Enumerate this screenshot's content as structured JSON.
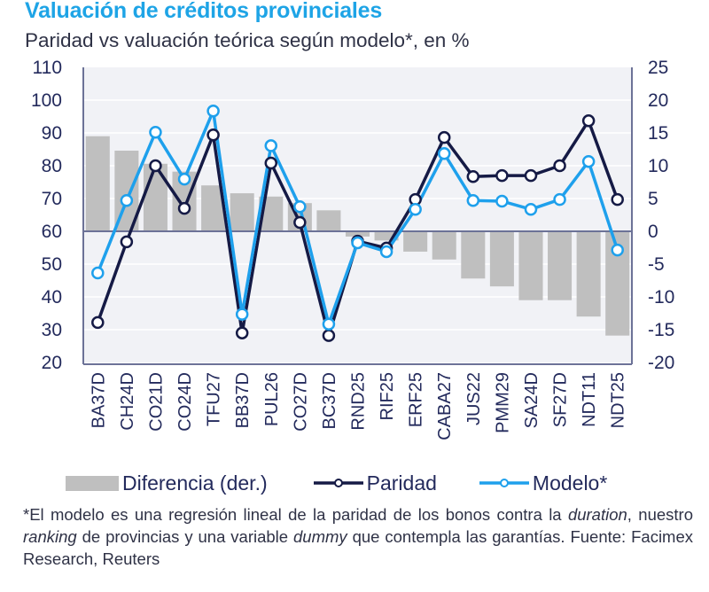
{
  "header": {
    "title": "Valuación de créditos provinciales",
    "subtitle": "Paridad vs valuación teórica según modelo*, en %"
  },
  "colors": {
    "title": "#1ea4e6",
    "paridad": "#151a45",
    "modelo": "#1ea0ec",
    "diferencia": "#bfbfbf",
    "plot_bg": "#f1f2f6",
    "axis": "#6c7297",
    "gridline": "#ffffff"
  },
  "chart_data": {
    "type": "bar+line",
    "title": "Valuación de créditos provinciales",
    "subtitle": "Paridad vs valuación teórica según modelo*, en %",
    "categories": [
      "BA37D",
      "CH24D",
      "CO21D",
      "CO24D",
      "TFU27",
      "BB37D",
      "PUL26",
      "CO27D",
      "BC37D",
      "RND25",
      "RIF25",
      "ERF25",
      "CABA27",
      "JUS22",
      "PMM29",
      "SA24D",
      "SF27D",
      "NDT11",
      "NDT25"
    ],
    "series": [
      {
        "name": "Diferencia (der.)",
        "type": "bar",
        "axis": "right",
        "values": [
          14.5,
          12.3,
          10.3,
          9.1,
          7.0,
          5.8,
          5.3,
          4.3,
          3.2,
          -0.8,
          -1.4,
          -3.1,
          -4.3,
          -7.2,
          -8.4,
          -10.5,
          -10.5,
          -13.0,
          -15.9
        ]
      },
      {
        "name": "Paridad",
        "type": "line",
        "axis": "left",
        "values": [
          32.2,
          56.8,
          80.0,
          67.0,
          89.4,
          29.0,
          80.8,
          62.7,
          28.2,
          57.0,
          54.9,
          69.7,
          88.6,
          76.7,
          77.0,
          77.0,
          80.0,
          93.7,
          69.7
        ]
      },
      {
        "name": "Modelo*",
        "type": "line",
        "axis": "left",
        "values": [
          47.3,
          69.4,
          90.2,
          75.9,
          96.7,
          34.7,
          86.1,
          67.5,
          31.7,
          56.5,
          53.8,
          66.7,
          83.7,
          69.4,
          69.2,
          66.7,
          69.7,
          81.3,
          54.3
        ]
      }
    ],
    "left_axis": {
      "ylim": [
        20,
        110
      ],
      "ticks": [
        "110",
        "100",
        "90",
        "80",
        "70",
        "60",
        "50",
        "40",
        "30",
        "20"
      ]
    },
    "right_axis": {
      "ylim": [
        -20,
        25
      ],
      "ticks": [
        "25",
        "20",
        "15",
        "10",
        "5",
        "0",
        "-5",
        "-10",
        "-15",
        "-20"
      ]
    },
    "xlabel": "",
    "ylabel": "",
    "grid": true,
    "legend_position": "bottom"
  },
  "legend": {
    "items": [
      {
        "label": "Diferencia (der.)"
      },
      {
        "label": "Paridad"
      },
      {
        "label": "Modelo*"
      }
    ]
  },
  "footnote": {
    "part1": "*El modelo es una regresión lineal de la paridad de los bonos contra la ",
    "em1": "duration",
    "part2": ", nuestro ",
    "em2": "ranking",
    "part3": " de provincias y una variable ",
    "em3": "dummy",
    "part4": " que contempla las garantías. Fuente: Facimex Research, Reuters"
  }
}
